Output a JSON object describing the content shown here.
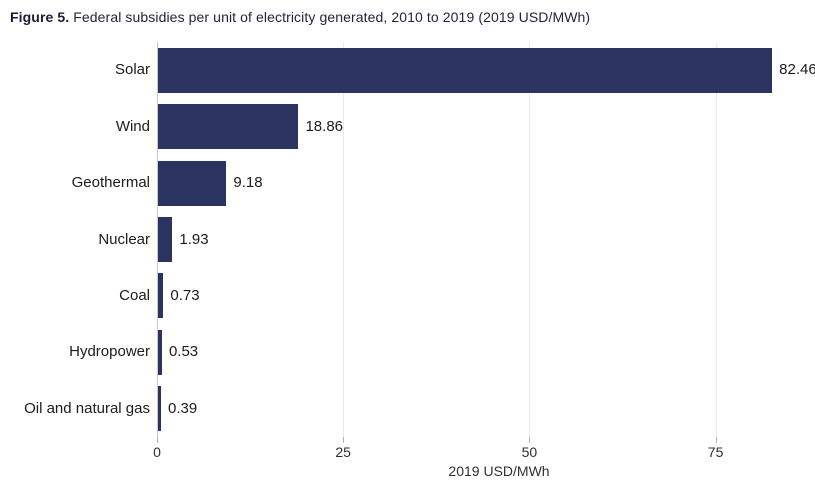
{
  "figure": {
    "label": "Figure 5.",
    "title": "Federal subsidies per unit of electricity generated, 2010 to 2019 (2019 USD/MWh)"
  },
  "chart_data": {
    "type": "bar",
    "orientation": "horizontal",
    "title": "Figure 5. Federal subsidies per unit of electricity generated, 2010 to 2019 (2019 USD/MWh)",
    "categories": [
      "Solar",
      "Wind",
      "Geothermal",
      "Nuclear",
      "Coal",
      "Hydropower",
      "Oil and natural gas"
    ],
    "values": [
      82.46,
      18.86,
      9.18,
      1.93,
      0.73,
      0.53,
      0.39
    ],
    "value_labels": [
      "82.46",
      "18.86",
      "9.18",
      "1.93",
      "0.73",
      "0.53",
      "0.39"
    ],
    "xlabel": "2019 USD/MWh",
    "ylabel": "",
    "x_ticks": [
      0,
      25,
      50,
      75
    ],
    "xlim": [
      0,
      87.7
    ],
    "grid": "vertical-gridlines-at-ticks",
    "legend": "none",
    "sorted": "descending",
    "bar_color": "#2b3461",
    "gridline_color": "#e9e9e9",
    "axis_line_color": "#c9c9c9"
  }
}
